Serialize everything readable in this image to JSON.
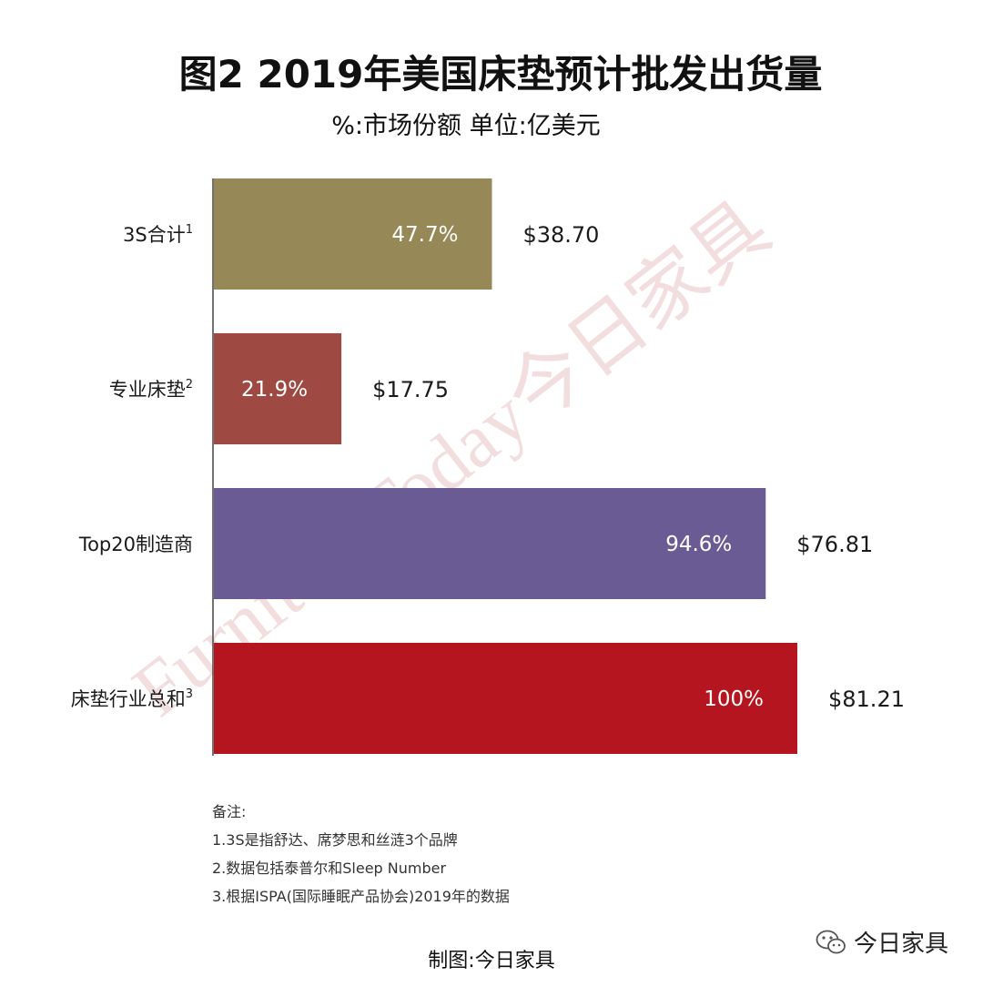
{
  "title": "图2  2019年美国床垫预计批发出货量",
  "subtitle": "%:市场份额  单位:亿美元",
  "watermark": "FurnitureToday今日家具",
  "chart_data": {
    "type": "bar",
    "orientation": "horizontal",
    "title": "图2  2019年美国床垫预计批发出货量",
    "subtitle": "%:市场份额  单位:亿美元",
    "categories": [
      {
        "label": "3S合计",
        "note_ref": "1"
      },
      {
        "label": "专业床垫",
        "note_ref": "2"
      },
      {
        "label": "Top20制造商",
        "note_ref": ""
      },
      {
        "label": "床垫行业总和",
        "note_ref": "3"
      }
    ],
    "values": [
      38.7,
      17.75,
      76.81,
      81.21
    ],
    "value_labels": [
      "$38.70",
      "$17.75",
      "$76.81",
      "$81.21"
    ],
    "share_labels": [
      "47.7%",
      "21.9%",
      "94.6%",
      "100%"
    ],
    "colors": [
      "#978957",
      "#9e4a43",
      "#6a5b94",
      "#b4151e"
    ],
    "xlim": [
      0,
      81.21
    ],
    "grid": false,
    "legend": "none"
  },
  "notes": {
    "heading": "备注:",
    "items": [
      "1.3S是指舒达、席梦思和丝涟3个品牌",
      "2.数据包括泰普尔和Sleep Number",
      "3.根据ISPA(国际睡眠产品协会)2019年的数据"
    ]
  },
  "credit": "制图:今日家具",
  "brand": {
    "name": "今日家具",
    "icon": "wechat-icon"
  }
}
